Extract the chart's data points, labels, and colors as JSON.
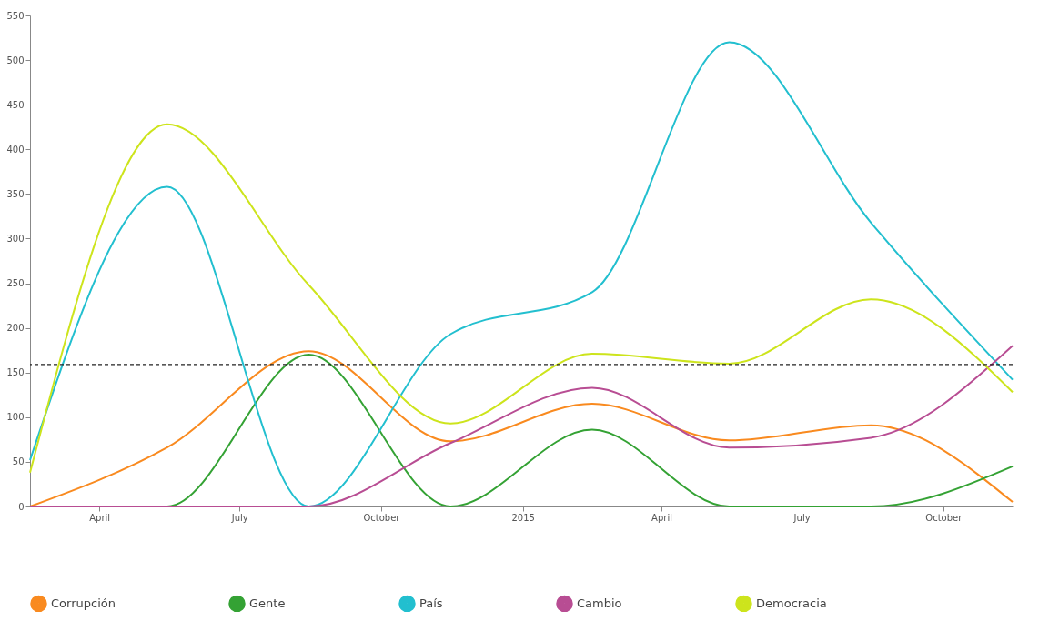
{
  "chart_data": {
    "type": "line",
    "x": [
      "2014-02-15",
      "2014-05-15",
      "2014-08-15",
      "2014-11-15",
      "2015-02-15",
      "2015-05-15",
      "2015-08-15",
      "2015-11-15"
    ],
    "series": [
      {
        "name": "Corrupción",
        "color": "#f98a1f",
        "values": [
          0,
          66,
          174,
          73,
          115,
          74,
          91,
          5
        ]
      },
      {
        "name": "Gente",
        "color": "#34a234",
        "values": [
          0,
          0,
          170,
          0,
          86,
          0,
          0,
          45
        ]
      },
      {
        "name": "País",
        "color": "#22bfcf",
        "values": [
          52,
          358,
          0,
          193,
          240,
          520,
          318,
          142
        ]
      },
      {
        "name": "Cambio",
        "color": "#b84d93",
        "values": [
          0,
          0,
          0,
          71,
          133,
          66,
          77,
          180
        ]
      },
      {
        "name": "Democracia",
        "color": "#cde41c",
        "values": [
          38,
          428,
          248,
          93,
          171,
          160,
          232,
          128
        ]
      }
    ],
    "xlim": [
      "2014-02-15",
      "2015-11-15"
    ],
    "xticks": [
      {
        "value": "2014-04-01",
        "label": "April"
      },
      {
        "value": "2014-07-01",
        "label": "July"
      },
      {
        "value": "2014-10-01",
        "label": "October"
      },
      {
        "value": "2015-01-01",
        "label": "2015"
      },
      {
        "value": "2015-04-01",
        "label": "April"
      },
      {
        "value": "2015-07-01",
        "label": "July"
      },
      {
        "value": "2015-10-01",
        "label": "October"
      }
    ],
    "ylim": [
      0,
      550
    ],
    "yticks": [
      0,
      50,
      100,
      150,
      200,
      250,
      300,
      350,
      400,
      450,
      500,
      550
    ],
    "ref_lines": [
      {
        "axis": "y",
        "value": 159,
        "color": "#222222",
        "line_style": "dashed"
      }
    ],
    "legend": "bottom",
    "marker": "none",
    "line_style": "solid",
    "grid": false
  }
}
